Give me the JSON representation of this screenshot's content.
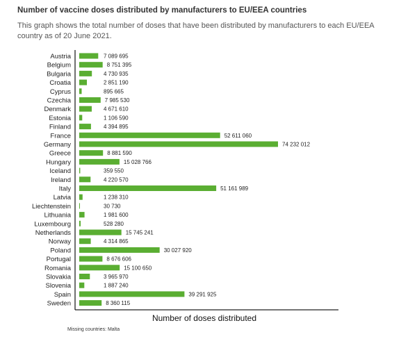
{
  "header": {
    "title": "Number of vaccine doses distributed by manufacturers to EU/EEA countries",
    "subtitle": "This graph shows the total number of doses that have been distributed by manufacturers to each EU/EEA country as of 20 June 2021."
  },
  "footnote": "Missing countries:  Malta",
  "chart_data": {
    "type": "bar",
    "orientation": "horizontal",
    "title": "Number of vaccine doses distributed by manufacturers to EU/EEA countries",
    "xlabel": "Number of doses distributed",
    "ylabel": "",
    "bar_color": "#5aae32",
    "xlim": [
      0,
      80000000
    ],
    "grid": false,
    "categories": [
      "Austria",
      "Belgium",
      "Bulgaria",
      "Croatia",
      "Cyprus",
      "Czechia",
      "Denmark",
      "Estonia",
      "Finland",
      "France",
      "Germany",
      "Greece",
      "Hungary",
      "Iceland",
      "Ireland",
      "Italy",
      "Latvia",
      "Liechtenstein",
      "Lithuania",
      "Luxembourg",
      "Netherlands",
      "Norway",
      "Poland",
      "Portugal",
      "Romania",
      "Slovakia",
      "Slovenia",
      "Spain",
      "Sweden"
    ],
    "values": [
      7089695,
      8751395,
      4730935,
      2851190,
      895665,
      7985530,
      4671610,
      1106590,
      4394895,
      52611060,
      74232012,
      8881590,
      15028766,
      359550,
      4220570,
      51161989,
      1238310,
      30730,
      1981600,
      528280,
      15745241,
      4314865,
      30027920,
      8676606,
      15100650,
      3965970,
      1887240,
      39291925,
      8360115
    ],
    "labels": [
      "7 089 695",
      "8 751 395",
      "4 730 935",
      "2 851 190",
      "895 665",
      "7 985 530",
      "4 671 610",
      "1 106 590",
      "4 394 895",
      "52 611 060",
      "74 232 012",
      "8 881 590",
      "15 028 766",
      "359 550",
      "4 220 570",
      "51 161 989",
      "1 238 310",
      "30 730",
      "1 981 600",
      "528 280",
      "15 745 241",
      "4 314 865",
      "30 027 920",
      "8 676 606",
      "15 100 650",
      "3 965 970",
      "1 887 240",
      "39 291 925",
      "8 360 115"
    ]
  }
}
